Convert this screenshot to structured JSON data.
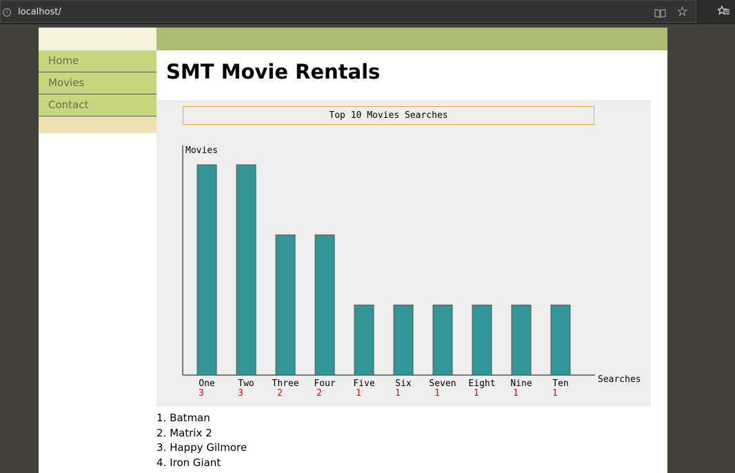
{
  "browser": {
    "url": "localhost/"
  },
  "nav": {
    "items": [
      {
        "label": "Home"
      },
      {
        "label": "Movies"
      },
      {
        "label": "Contact"
      }
    ]
  },
  "page": {
    "title": "SMT Movie Rentals"
  },
  "colors": {
    "bar_fill": "#339595",
    "count_label": "#ff0000",
    "title_border": "#f0a830"
  },
  "chart_data": {
    "type": "bar",
    "title": "Top 10 Movies Searches",
    "ylabel": "Movies",
    "xlabel": "Searches",
    "categories": [
      "One",
      "Two",
      "Three",
      "Four",
      "Five",
      "Six",
      "Seven",
      "Eight",
      "Nine",
      "Ten"
    ],
    "values": [
      3,
      3,
      2,
      2,
      1,
      1,
      1,
      1,
      1,
      1
    ],
    "ylim": [
      0,
      3
    ],
    "grid": false,
    "value_labels_shown": true
  },
  "movie_list": [
    "1. Batman",
    "2. Matrix 2",
    "3. Happy Gilmore",
    "4. Iron Giant"
  ]
}
